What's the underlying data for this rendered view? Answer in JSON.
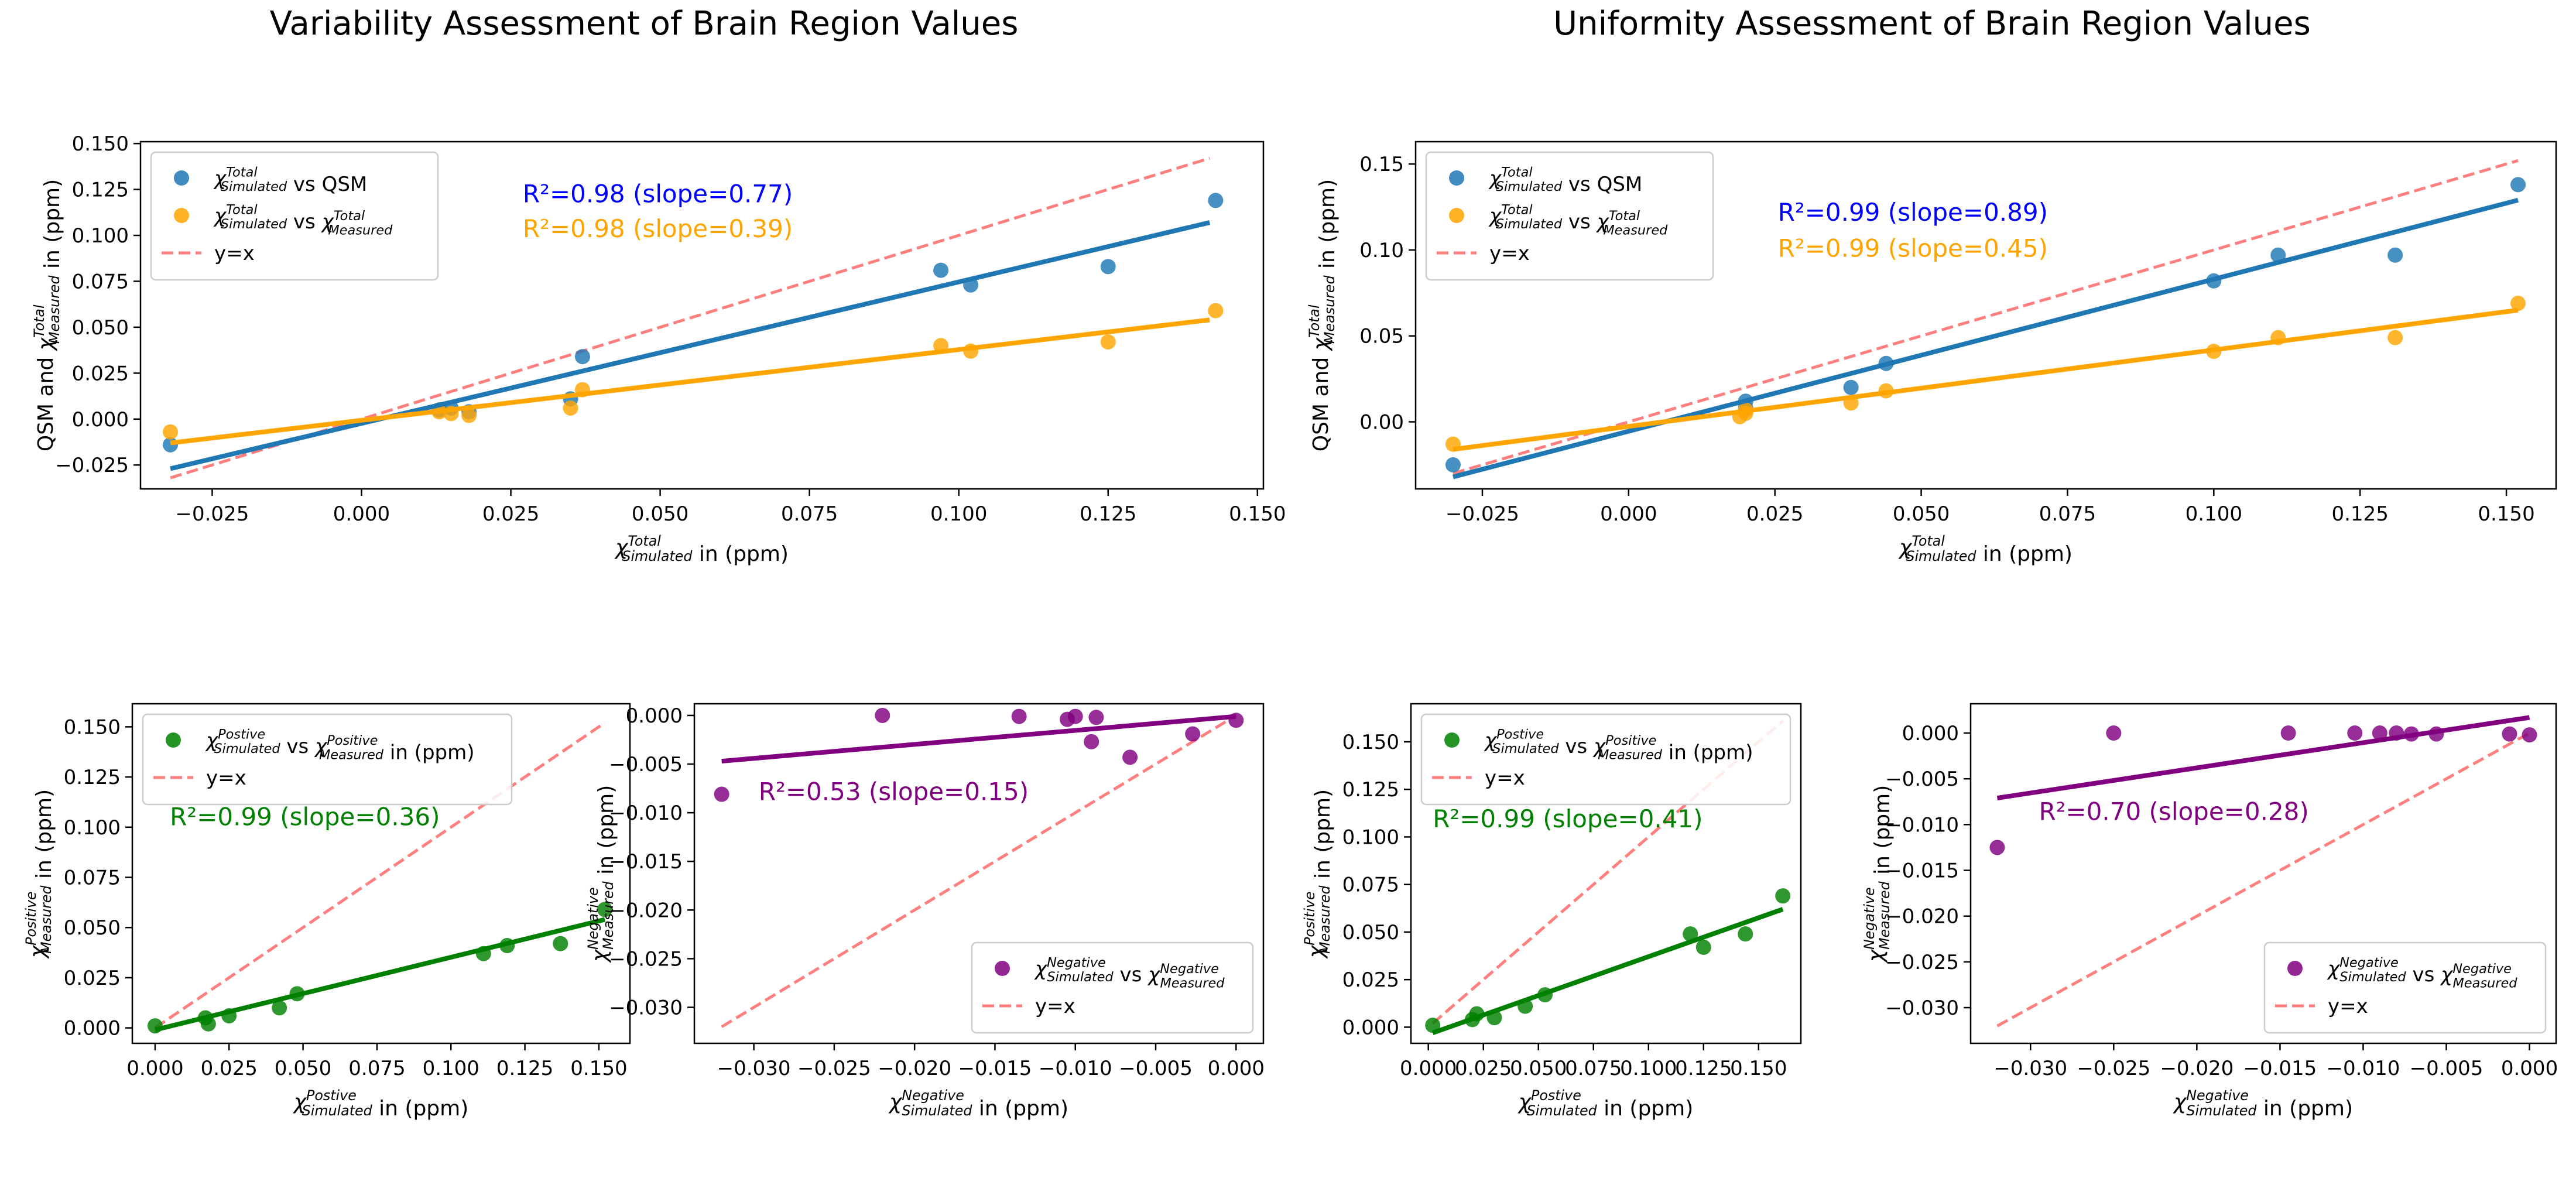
{
  "figure": {
    "titles": [
      "Variability Assessment of Brain Region Values",
      "Uniformity Assessment of Brain Region Values"
    ]
  },
  "chart_data": [
    {
      "id": "var-total",
      "type": "scatter",
      "xlim": [
        -0.037,
        0.151
      ],
      "ylim": [
        -0.038,
        0.151
      ],
      "xticks": [
        -0.025,
        0.0,
        0.025,
        0.05,
        0.075,
        0.1,
        0.125,
        0.15
      ],
      "xtick_labels": [
        "−0.025",
        "0.000",
        "0.025",
        "0.050",
        "0.075",
        "0.100",
        "0.125",
        "0.150"
      ],
      "yticks": [
        -0.025,
        0.0,
        0.025,
        0.05,
        0.075,
        0.1,
        0.125,
        0.15
      ],
      "ytick_labels": [
        "−0.025",
        "0.000",
        "0.025",
        "0.050",
        "0.075",
        "0.100",
        "0.125",
        "0.150"
      ],
      "xlabel": {
        "sym": "χ",
        "sup": "Total",
        "sub": "Simulated",
        "rest": " in (ppm)"
      },
      "ylabel": {
        "pre": "QSM and ",
        "sym": "χ",
        "sup": "Total",
        "sub": "Measured",
        "rest": " in (ppm)"
      },
      "legend_position": "upper-left",
      "legend": [
        {
          "marker": "dot",
          "color": "#1f77b4",
          "parts": [
            {
              "sym": "χ",
              "sup": "Total",
              "sub": "Simulated"
            },
            {
              "text": " vs QSM"
            }
          ]
        },
        {
          "marker": "dot",
          "color": "#ffa500",
          "parts": [
            {
              "sym": "χ",
              "sup": "Total",
              "sub": "Simulated"
            },
            {
              "text": " vs "
            },
            {
              "sym": "χ",
              "sup": "Total",
              "sub": "Measured"
            }
          ]
        },
        {
          "marker": "dash",
          "color": "#ff7f7f",
          "parts": [
            {
              "text": "y=x"
            }
          ]
        }
      ],
      "annotations": [
        {
          "text": "R²=0.98 (slope=0.77)",
          "color": "#0000ff",
          "pos": [
            0.027,
            0.118
          ]
        },
        {
          "text": "R²=0.98 (slope=0.39)",
          "color": "#ffa500",
          "pos": [
            0.027,
            0.099
          ]
        }
      ],
      "identity": {
        "x": [
          -0.032,
          0.142
        ],
        "color": "#ff7f7f"
      },
      "series": [
        {
          "color": "#1f77b4",
          "x": [
            -0.032,
            0.013,
            0.015,
            0.018,
            0.035,
            0.037,
            0.097,
            0.102,
            0.125,
            0.143
          ],
          "y": [
            -0.014,
            0.005,
            0.006,
            0.004,
            0.011,
            0.034,
            0.081,
            0.073,
            0.083,
            0.119
          ],
          "fit": {
            "x": [
              -0.032,
              0.142
            ],
            "y": [
              -0.027,
              0.107
            ]
          }
        },
        {
          "color": "#ffa500",
          "x": [
            -0.032,
            0.013,
            0.015,
            0.018,
            0.035,
            0.037,
            0.097,
            0.102,
            0.125,
            0.143
          ],
          "y": [
            -0.007,
            0.004,
            0.003,
            0.002,
            0.006,
            0.016,
            0.04,
            0.037,
            0.042,
            0.059
          ],
          "fit": {
            "x": [
              -0.032,
              0.142
            ],
            "y": [
              -0.013,
              0.054
            ]
          }
        }
      ]
    },
    {
      "id": "uni-total",
      "type": "scatter",
      "xlim": [
        -0.0364,
        0.1585
      ],
      "ylim": [
        -0.039,
        0.163
      ],
      "xticks": [
        -0.025,
        0.0,
        0.025,
        0.05,
        0.075,
        0.1,
        0.125,
        0.15
      ],
      "xtick_labels": [
        "−0.025",
        "0.000",
        "0.025",
        "0.050",
        "0.075",
        "0.100",
        "0.125",
        "0.150"
      ],
      "yticks": [
        0.0,
        0.05,
        0.1,
        0.15
      ],
      "ytick_labels": [
        "0.00",
        "0.05",
        "0.10",
        "0.15"
      ],
      "xlabel": {
        "sym": "χ",
        "sup": "Total",
        "sub": "Simulated",
        "rest": " in (ppm)"
      },
      "ylabel": {
        "pre": "QSM and ",
        "sym": "χ",
        "sup": "Total",
        "sub": "Measured",
        "rest": " in (ppm)"
      },
      "legend_position": "upper-left",
      "legend": [
        {
          "marker": "dot",
          "color": "#1f77b4",
          "parts": [
            {
              "sym": "χ",
              "sup": "Total",
              "sub": "Simulated"
            },
            {
              "text": " vs QSM"
            }
          ]
        },
        {
          "marker": "dot",
          "color": "#ffa500",
          "parts": [
            {
              "sym": "χ",
              "sup": "Total",
              "sub": "Simulated"
            },
            {
              "text": " vs "
            },
            {
              "sym": "χ",
              "sup": "Total",
              "sub": "Measured"
            }
          ]
        },
        {
          "marker": "dash",
          "color": "#ff7f7f",
          "parts": [
            {
              "text": "y=x"
            }
          ]
        }
      ],
      "annotations": [
        {
          "text": "R²=0.99 (slope=0.89)",
          "color": "#0000ff",
          "pos": [
            0.0255,
            0.117
          ]
        },
        {
          "text": "R²=0.99 (slope=0.45)",
          "color": "#ffa500",
          "pos": [
            0.0255,
            0.096
          ]
        }
      ],
      "identity": {
        "x": [
          -0.03,
          0.152
        ],
        "color": "#ff7f7f"
      },
      "series": [
        {
          "color": "#1f77b4",
          "x": [
            -0.03,
            0.02,
            0.02,
            0.038,
            0.044,
            0.1,
            0.111,
            0.131,
            0.152
          ],
          "y": [
            -0.025,
            0.008,
            0.012,
            0.02,
            0.034,
            0.082,
            0.097,
            0.097,
            0.138
          ],
          "fit": {
            "x": [
              -0.03,
              0.152
            ],
            "y": [
              -0.032,
              0.129
            ]
          }
        },
        {
          "color": "#ffa500",
          "x": [
            -0.03,
            0.019,
            0.02,
            0.02,
            0.038,
            0.044,
            0.1,
            0.111,
            0.131,
            0.152
          ],
          "y": [
            -0.013,
            0.003,
            0.005,
            0.007,
            0.011,
            0.018,
            0.041,
            0.049,
            0.049,
            0.069
          ],
          "fit": {
            "x": [
              -0.03,
              0.152
            ],
            "y": [
              -0.016,
              0.065
            ]
          }
        }
      ]
    },
    {
      "id": "var-positive",
      "type": "scatter",
      "xlim": [
        -0.0077,
        0.1605
      ],
      "ylim": [
        -0.0077,
        0.1615
      ],
      "xticks": [
        0.0,
        0.025,
        0.05,
        0.075,
        0.1,
        0.125,
        0.15
      ],
      "xtick_labels": [
        "0.000",
        "0.025",
        "0.050",
        "0.075",
        "0.100",
        "0.125",
        "0.150"
      ],
      "yticks": [
        0.0,
        0.025,
        0.05,
        0.075,
        0.1,
        0.125,
        0.15
      ],
      "ytick_labels": [
        "0.000",
        "0.025",
        "0.050",
        "0.075",
        "0.100",
        "0.125",
        "0.150"
      ],
      "xlabel": {
        "sym": "χ",
        "sup": "Postive",
        "sub": "Simulated",
        "rest": " in (ppm)"
      },
      "ylabel": {
        "sym": "χ",
        "sup": "Positive",
        "sub": "Measured",
        "rest": " in (ppm)"
      },
      "legend_position": "upper-left",
      "legend": [
        {
          "marker": "dot",
          "color": "#008000",
          "parts": [
            {
              "sym": "χ",
              "sup": "Postive",
              "sub": "Simulated"
            },
            {
              "text": " vs "
            },
            {
              "sym": "χ",
              "sup": "Positive",
              "sub": "Measured"
            },
            {
              "text": " in (ppm)"
            }
          ]
        },
        {
          "marker": "dash",
          "color": "#ff7f7f",
          "parts": [
            {
              "text": "y=x"
            }
          ]
        }
      ],
      "annotations": [
        {
          "text": "R²=0.99 (slope=0.36)",
          "color": "#008000",
          "pos": [
            0.005,
            0.101
          ]
        }
      ],
      "identity": {
        "x": [
          0.0,
          0.152
        ],
        "color": "#ff7f7f"
      },
      "series": [
        {
          "color": "#008000",
          "x": [
            0.0,
            0.017,
            0.018,
            0.025,
            0.042,
            0.048,
            0.111,
            0.119,
            0.137,
            0.152
          ],
          "y": [
            0.001,
            0.005,
            0.002,
            0.006,
            0.01,
            0.017,
            0.037,
            0.041,
            0.042,
            0.059
          ],
          "fit": {
            "x": [
              0.0,
              0.152
            ],
            "y": [
              -0.001,
              0.054
            ]
          }
        }
      ]
    },
    {
      "id": "var-negative",
      "type": "scatter",
      "xlim": [
        -0.0337,
        0.0017
      ],
      "ylim": [
        -0.0337,
        0.0012
      ],
      "xticks": [
        -0.03,
        -0.025,
        -0.02,
        -0.015,
        -0.01,
        -0.005,
        0.0
      ],
      "xtick_labels": [
        "−0.030",
        "−0.025",
        "−0.020",
        "−0.015",
        "−0.010",
        "−0.005",
        "0.000"
      ],
      "yticks": [
        -0.03,
        -0.025,
        -0.02,
        -0.015,
        -0.01,
        -0.005,
        0.0
      ],
      "ytick_labels": [
        "−0.030",
        "−0.025",
        "−0.020",
        "−0.015",
        "−0.010",
        "−0.005",
        "0.000"
      ],
      "xlabel": {
        "sym": "χ",
        "sup": "Negative",
        "sub": "Simulated",
        "rest": " in (ppm)"
      },
      "ylabel": {
        "sym": "χ",
        "sup": "Negative",
        "sub": "Measured",
        "rest": " in (ppm)"
      },
      "legend_position": "lower-right",
      "legend": [
        {
          "marker": "dot",
          "color": "#800080",
          "parts": [
            {
              "sym": "χ",
              "sup": "Negative",
              "sub": "Simulated"
            },
            {
              "text": " vs "
            },
            {
              "sym": "χ",
              "sup": "Negative",
              "sub": "Measured"
            }
          ]
        },
        {
          "marker": "dash",
          "color": "#ff7f7f",
          "parts": [
            {
              "text": "y=x"
            }
          ]
        }
      ],
      "annotations": [
        {
          "text": "R²=0.53 (slope=0.15)",
          "color": "#800080",
          "pos": [
            -0.0297,
            -0.0087
          ]
        }
      ],
      "identity": {
        "x": [
          -0.032,
          0.0
        ],
        "color": "#ff7f7f"
      },
      "series": [
        {
          "color": "#800080",
          "x": [
            -0.032,
            -0.022,
            -0.0135,
            -0.0105,
            -0.01,
            -0.009,
            -0.0087,
            -0.0066,
            -0.0027,
            0.0
          ],
          "y": [
            -0.0081,
            0.0,
            -0.0001,
            -0.0004,
            -0.0001,
            -0.0027,
            -0.0002,
            -0.0043,
            -0.0019,
            -0.0005
          ],
          "fit": {
            "x": [
              -0.032,
              0.0
            ],
            "y": [
              -0.0047,
              -0.0001
            ]
          }
        }
      ]
    },
    {
      "id": "uni-positive",
      "type": "scatter",
      "xlim": [
        -0.0079,
        0.1692
      ],
      "ylim": [
        -0.0085,
        0.17
      ],
      "xticks": [
        0.0,
        0.025,
        0.05,
        0.075,
        0.1,
        0.125,
        0.15
      ],
      "xtick_labels": [
        "0.000",
        "0.025",
        "0.050",
        "0.075",
        "0.100",
        "0.125",
        "0.150"
      ],
      "yticks": [
        0.0,
        0.025,
        0.05,
        0.075,
        0.1,
        0.125,
        0.15
      ],
      "ytick_labels": [
        "0.000",
        "0.025",
        "0.050",
        "0.075",
        "0.100",
        "0.125",
        "0.150"
      ],
      "xlabel": {
        "sym": "χ",
        "sup": "Postive",
        "sub": "Simulated",
        "rest": " in (ppm)"
      },
      "ylabel": {
        "sym": "χ",
        "sup": "Positive",
        "sub": "Measured",
        "rest": " in (ppm)"
      },
      "legend_position": "upper-left",
      "legend": [
        {
          "marker": "dot",
          "color": "#008000",
          "parts": [
            {
              "sym": "χ",
              "sup": "Postive",
              "sub": "Simulated"
            },
            {
              "text": " vs "
            },
            {
              "sym": "χ",
              "sup": "Positive",
              "sub": "Measured"
            },
            {
              "text": " in (ppm)"
            }
          ]
        },
        {
          "marker": "dash",
          "color": "#ff7f7f",
          "parts": [
            {
              "text": "y=x"
            }
          ]
        }
      ],
      "annotations": [
        {
          "text": "R²=0.99 (slope=0.41)",
          "color": "#008000",
          "pos": [
            0.002,
            0.105
          ]
        }
      ],
      "identity": {
        "x": [
          0.002,
          0.161
        ],
        "color": "#ff7f7f"
      },
      "series": [
        {
          "color": "#008000",
          "x": [
            0.002,
            0.02,
            0.022,
            0.03,
            0.044,
            0.053,
            0.119,
            0.125,
            0.144,
            0.161
          ],
          "y": [
            0.001,
            0.004,
            0.007,
            0.005,
            0.011,
            0.017,
            0.049,
            0.042,
            0.049,
            0.069
          ],
          "fit": {
            "x": [
              0.002,
              0.161
            ],
            "y": [
              -0.003,
              0.062
            ]
          }
        }
      ]
    },
    {
      "id": "uni-negative",
      "type": "scatter",
      "xlim": [
        -0.0336,
        0.0016
      ],
      "ylim": [
        -0.0339,
        0.0032
      ],
      "xticks": [
        -0.03,
        -0.025,
        -0.02,
        -0.015,
        -0.01,
        -0.005,
        0.0
      ],
      "xtick_labels": [
        "−0.030",
        "−0.025",
        "−0.020",
        "−0.015",
        "−0.010",
        "−0.005",
        "0.000"
      ],
      "yticks": [
        -0.03,
        -0.025,
        -0.02,
        -0.015,
        -0.01,
        -0.005,
        0.0
      ],
      "ytick_labels": [
        "−0.030",
        "−0.025",
        "−0.020",
        "−0.015",
        "−0.010",
        "−0.005",
        "0.000"
      ],
      "xlabel": {
        "sym": "χ",
        "sup": "Negative",
        "sub": "Simulated",
        "rest": " in (ppm)"
      },
      "ylabel": {
        "sym": "χ",
        "sup": "Negative",
        "sub": "Measured",
        "rest": " in (ppm)"
      },
      "legend_position": "lower-right",
      "legend": [
        {
          "marker": "dot",
          "color": "#800080",
          "parts": [
            {
              "sym": "χ",
              "sup": "Negative",
              "sub": "Simulated"
            },
            {
              "text": " vs "
            },
            {
              "sym": "χ",
              "sup": "Negative",
              "sub": "Measured"
            }
          ]
        },
        {
          "marker": "dash",
          "color": "#ff7f7f",
          "parts": [
            {
              "text": "y=x"
            }
          ]
        }
      ],
      "annotations": [
        {
          "text": "R²=0.70 (slope=0.28)",
          "color": "#800080",
          "pos": [
            -0.0295,
            -0.0095
          ]
        }
      ],
      "identity": {
        "x": [
          -0.032,
          0.0
        ],
        "color": "#ff7f7f"
      },
      "series": [
        {
          "color": "#800080",
          "x": [
            -0.032,
            -0.025,
            -0.0145,
            -0.0105,
            -0.009,
            -0.008,
            -0.0071,
            -0.0056,
            -0.0012,
            0.0
          ],
          "y": [
            -0.0125,
            0.0,
            0.0,
            0.0,
            0.0,
            0.0,
            -0.0001,
            -0.0001,
            -0.0001,
            -0.0002
          ],
          "fit": {
            "x": [
              -0.032,
              0.0
            ],
            "y": [
              -0.0071,
              0.0017
            ]
          }
        }
      ]
    }
  ]
}
